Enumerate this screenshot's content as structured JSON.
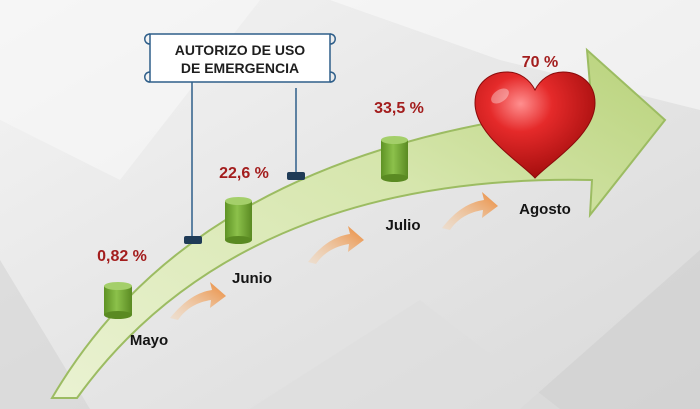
{
  "banner": {
    "line1": "AUTORIZO DE USO",
    "line2": "DE EMERGENCIA"
  },
  "stages": [
    {
      "month": "Mayo",
      "value": "0,82 %",
      "icon": "green-cylinder"
    },
    {
      "month": "Junio",
      "value": "22,6 %",
      "icon": "green-cylinder"
    },
    {
      "month": "Julio",
      "value": "33,5 %",
      "icon": "green-cylinder"
    },
    {
      "month": "Agosto",
      "value": "70 %",
      "icon": "red-heart"
    }
  ],
  "colors": {
    "value_text": "#a31d1d",
    "arrow_fill": "#cfe0a4",
    "arrow_edge": "#8fb356",
    "cylinder": "#7cae3a",
    "heart": "#d61f1f",
    "small_arrow": "#f0a15a"
  }
}
